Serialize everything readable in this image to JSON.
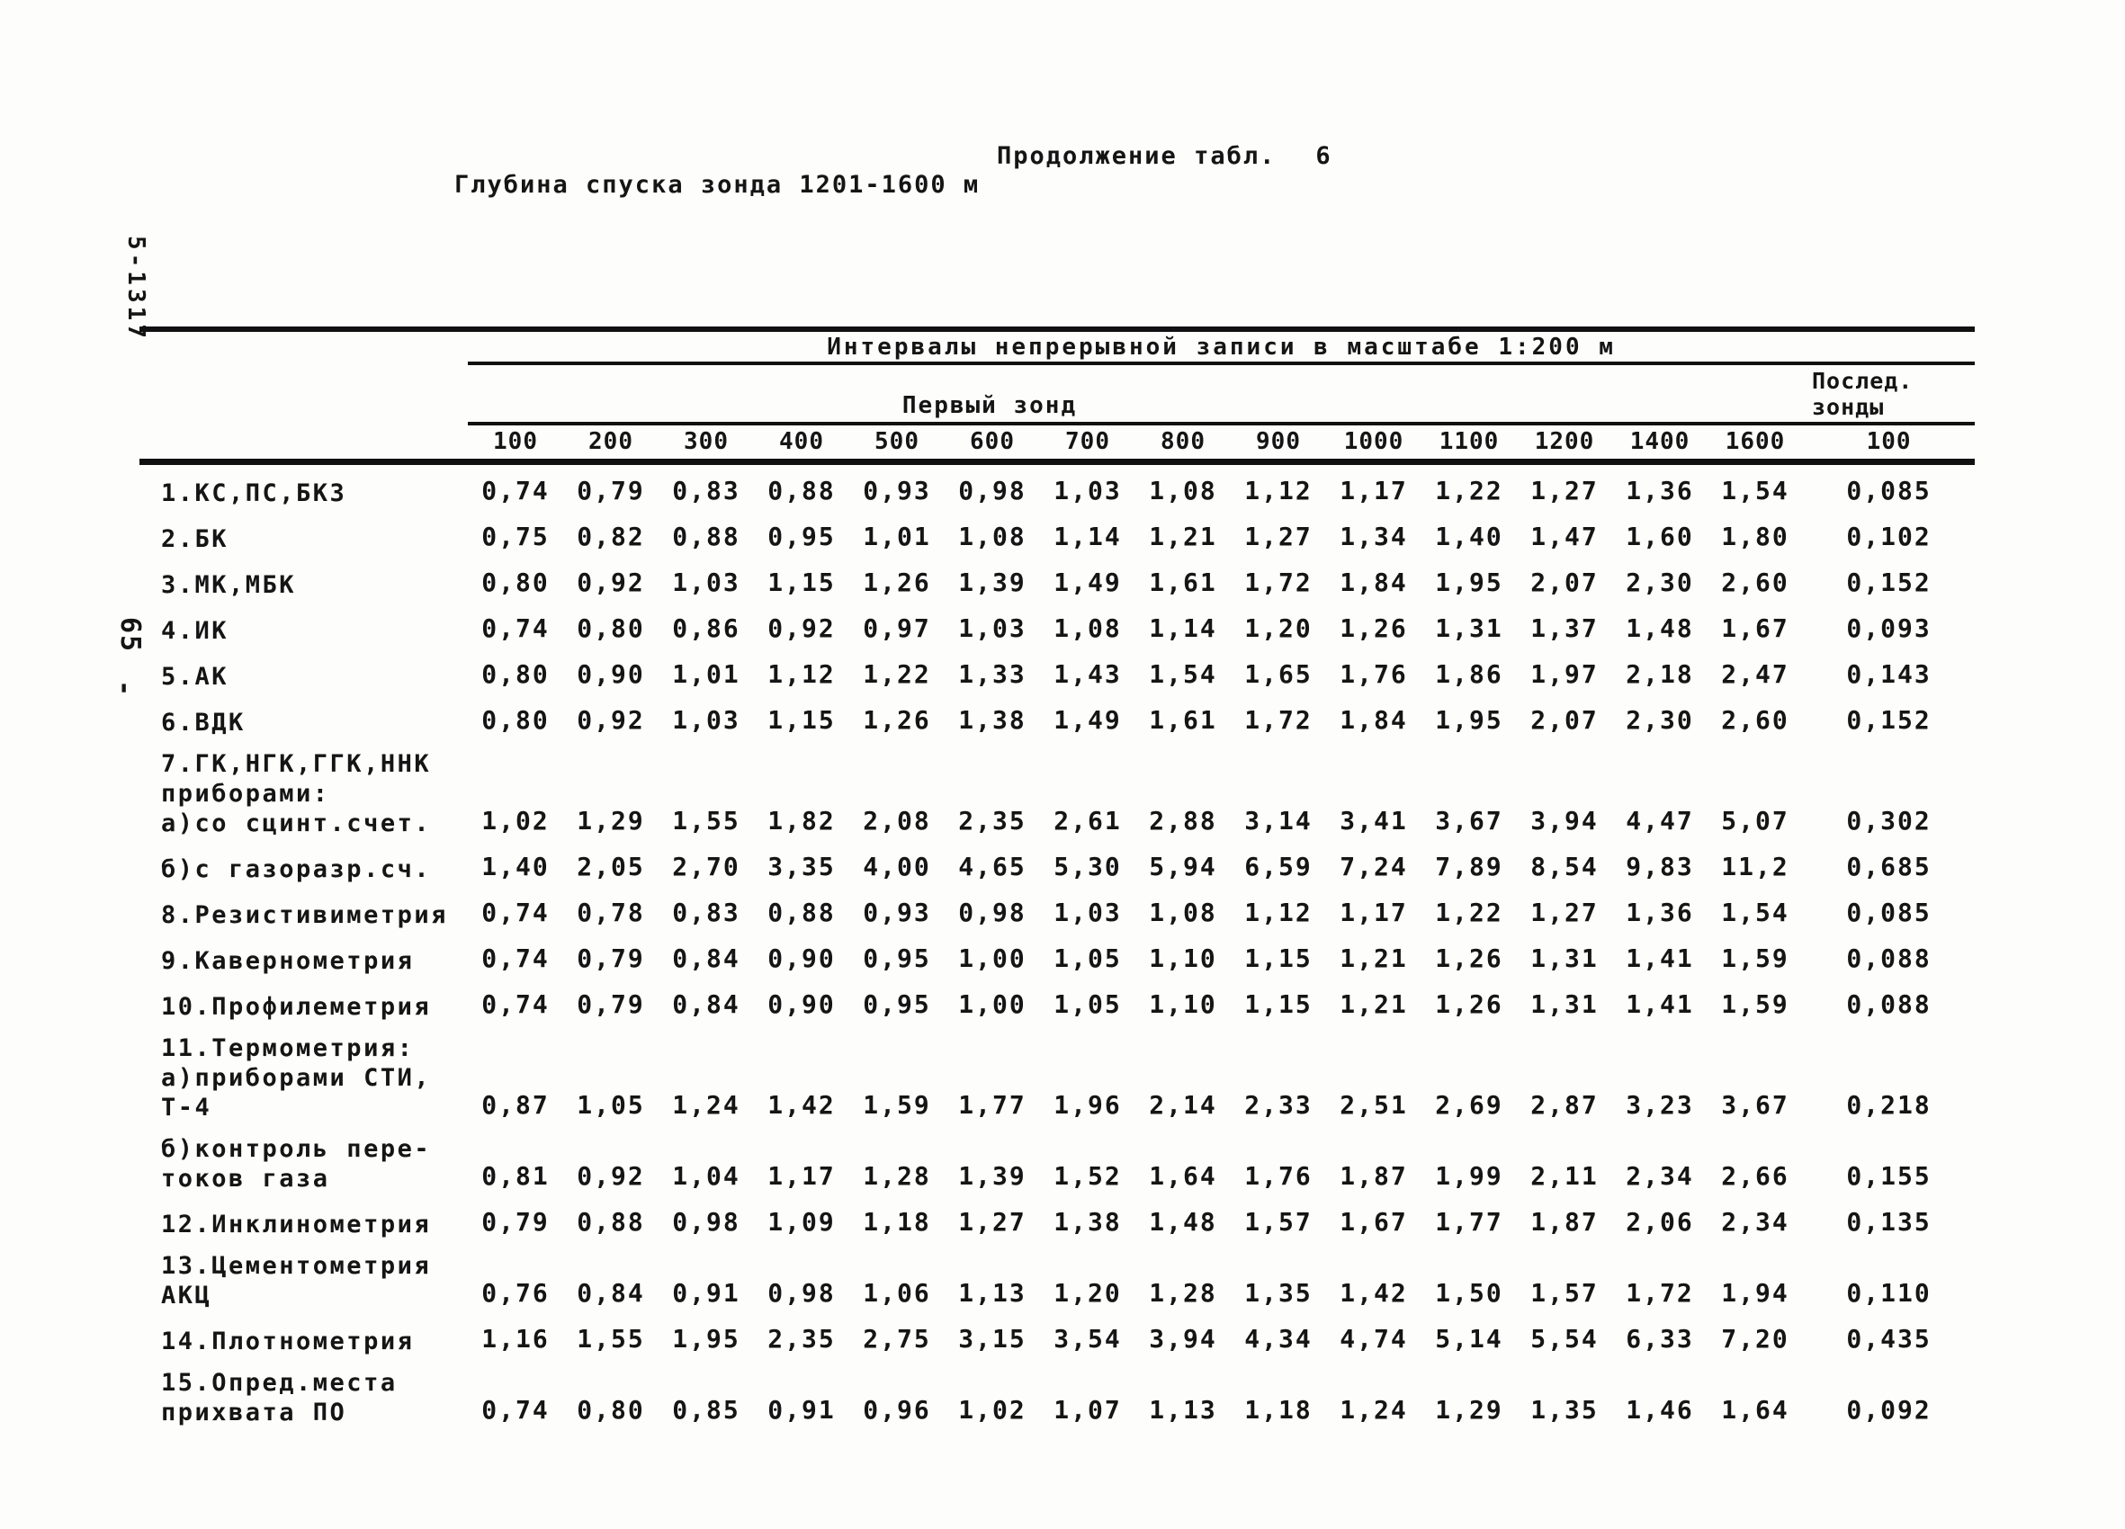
{
  "page": {
    "continuation_note": "Продолжение табл.",
    "continuation_table_number": "6",
    "title": "Глубина спуска зонда 1201-1600 м",
    "margin_print_code": "5-1317",
    "margin_page_number": "65",
    "margin_dash": "-"
  },
  "table": {
    "header": {
      "scale_note": "Интервалы непрерывной записи в масштабе 1:200 м",
      "first_probe_label": "Первый зонд",
      "last_probes_label_line1": "Послед.",
      "last_probes_label_line2": "зонды",
      "interval_columns": [
        "100",
        "200",
        "300",
        "400",
        "500",
        "600",
        "700",
        "800",
        "900",
        "1000",
        "1100",
        "1200",
        "1400",
        "1600"
      ],
      "last_probe_column": "100"
    },
    "rows": [
      {
        "label_lines": [
          "1.КС,ПС,БКЗ"
        ],
        "values": [
          "0,74",
          "0,79",
          "0,83",
          "0,88",
          "0,93",
          "0,98",
          "1,03",
          "1,08",
          "1,12",
          "1,17",
          "1,22",
          "1,27",
          "1,36",
          "1,54",
          "0,085"
        ]
      },
      {
        "label_lines": [
          "2.БК"
        ],
        "values": [
          "0,75",
          "0,82",
          "0,88",
          "0,95",
          "1,01",
          "1,08",
          "1,14",
          "1,21",
          "1,27",
          "1,34",
          "1,40",
          "1,47",
          "1,60",
          "1,80",
          "0,102"
        ]
      },
      {
        "label_lines": [
          "3.МК,МБК"
        ],
        "values": [
          "0,80",
          "0,92",
          "1,03",
          "1,15",
          "1,26",
          "1,39",
          "1,49",
          "1,61",
          "1,72",
          "1,84",
          "1,95",
          "2,07",
          "2,30",
          "2,60",
          "0,152"
        ]
      },
      {
        "label_lines": [
          "4.ИК"
        ],
        "values": [
          "0,74",
          "0,80",
          "0,86",
          "0,92",
          "0,97",
          "1,03",
          "1,08",
          "1,14",
          "1,20",
          "1,26",
          "1,31",
          "1,37",
          "1,48",
          "1,67",
          "0,093"
        ]
      },
      {
        "label_lines": [
          "5.АК"
        ],
        "values": [
          "0,80",
          "0,90",
          "1,01",
          "1,12",
          "1,22",
          "1,33",
          "1,43",
          "1,54",
          "1,65",
          "1,76",
          "1,86",
          "1,97",
          "2,18",
          "2,47",
          "0,143"
        ]
      },
      {
        "label_lines": [
          "6.ВДК"
        ],
        "values": [
          "0,80",
          "0,92",
          "1,03",
          "1,15",
          "1,26",
          "1,38",
          "1,49",
          "1,61",
          "1,72",
          "1,84",
          "1,95",
          "2,07",
          "2,30",
          "2,60",
          "0,152"
        ]
      },
      {
        "label_lines": [
          "7.ГК,НГК,ГГК,ННК",
          "приборами:",
          "а)со сцинт.счет."
        ],
        "values": [
          "1,02",
          "1,29",
          "1,55",
          "1,82",
          "2,08",
          "2,35",
          "2,61",
          "2,88",
          "3,14",
          "3,41",
          "3,67",
          "3,94",
          "4,47",
          "5,07",
          "0,302"
        ]
      },
      {
        "label_lines": [
          "б)с газоразр.сч."
        ],
        "values": [
          "1,40",
          "2,05",
          "2,70",
          "3,35",
          "4,00",
          "4,65",
          "5,30",
          "5,94",
          "6,59",
          "7,24",
          "7,89",
          "8,54",
          "9,83",
          "11,2",
          "0,685"
        ]
      },
      {
        "label_lines": [
          "8.Резистивиметрия"
        ],
        "values": [
          "0,74",
          "0,78",
          "0,83",
          "0,88",
          "0,93",
          "0,98",
          "1,03",
          "1,08",
          "1,12",
          "1,17",
          "1,22",
          "1,27",
          "1,36",
          "1,54",
          "0,085"
        ]
      },
      {
        "label_lines": [
          "9.Кавернометрия"
        ],
        "values": [
          "0,74",
          "0,79",
          "0,84",
          "0,90",
          "0,95",
          "1,00",
          "1,05",
          "1,10",
          "1,15",
          "1,21",
          "1,26",
          "1,31",
          "1,41",
          "1,59",
          "0,088"
        ]
      },
      {
        "label_lines": [
          "10.Профилеметрия"
        ],
        "values": [
          "0,74",
          "0,79",
          "0,84",
          "0,90",
          "0,95",
          "1,00",
          "1,05",
          "1,10",
          "1,15",
          "1,21",
          "1,26",
          "1,31",
          "1,41",
          "1,59",
          "0,088"
        ]
      },
      {
        "label_lines": [
          "11.Термометрия:",
          "а)приборами СТИ,",
          "Т-4"
        ],
        "values": [
          "0,87",
          "1,05",
          "1,24",
          "1,42",
          "1,59",
          "1,77",
          "1,96",
          "2,14",
          "2,33",
          "2,51",
          "2,69",
          "2,87",
          "3,23",
          "3,67",
          "0,218"
        ]
      },
      {
        "label_lines": [
          "б)контроль пере-",
          "токов газа"
        ],
        "values": [
          "0,81",
          "0,92",
          "1,04",
          "1,17",
          "1,28",
          "1,39",
          "1,52",
          "1,64",
          "1,76",
          "1,87",
          "1,99",
          "2,11",
          "2,34",
          "2,66",
          "0,155"
        ]
      },
      {
        "label_lines": [
          "12.Инклинометрия"
        ],
        "values": [
          "0,79",
          "0,88",
          "0,98",
          "1,09",
          "1,18",
          "1,27",
          "1,38",
          "1,48",
          "1,57",
          "1,67",
          "1,77",
          "1,87",
          "2,06",
          "2,34",
          "0,135"
        ]
      },
      {
        "label_lines": [
          "13.Цементометрия",
          "АКЦ"
        ],
        "values": [
          "0,76",
          "0,84",
          "0,91",
          "0,98",
          "1,06",
          "1,13",
          "1,20",
          "1,28",
          "1,35",
          "1,42",
          "1,50",
          "1,57",
          "1,72",
          "1,94",
          "0,110"
        ]
      },
      {
        "label_lines": [
          "14.Плотнометрия"
        ],
        "values": [
          "1,16",
          "1,55",
          "1,95",
          "2,35",
          "2,75",
          "3,15",
          "3,54",
          "3,94",
          "4,34",
          "4,74",
          "5,14",
          "5,54",
          "6,33",
          "7,20",
          "0,435"
        ]
      },
      {
        "label_lines": [
          "15.Опред.места",
          "прихвата ПО"
        ],
        "values": [
          "0,74",
          "0,80",
          "0,85",
          "0,91",
          "0,96",
          "1,02",
          "1,07",
          "1,13",
          "1,18",
          "1,24",
          "1,29",
          "1,35",
          "1,46",
          "1,64",
          "0,092"
        ]
      }
    ]
  }
}
